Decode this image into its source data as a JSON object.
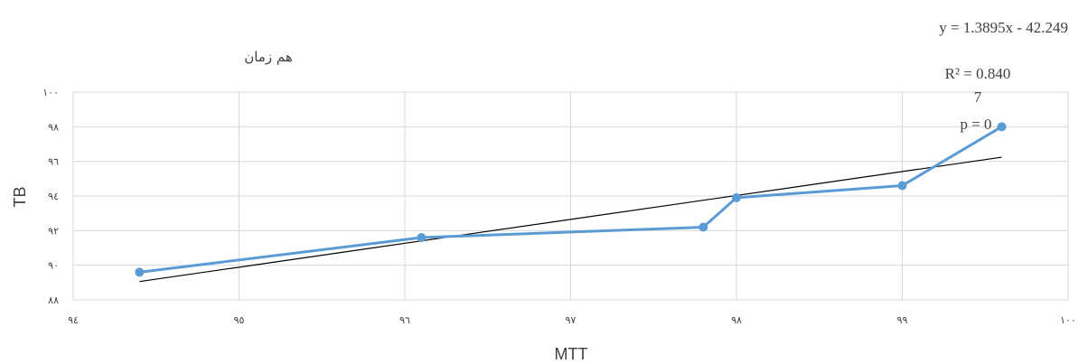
{
  "chart_data": {
    "type": "scatter",
    "title": "هم زمان",
    "xlabel": "MTT",
    "ylabel": "TB",
    "xlim": [
      94,
      100
    ],
    "ylim": [
      88,
      100
    ],
    "xticks": [
      94,
      95,
      96,
      97,
      98,
      99,
      100
    ],
    "yticks": [
      88,
      90,
      92,
      94,
      96,
      98,
      100
    ],
    "xtick_labels": [
      "۹٤",
      "۹٥",
      "۹٦",
      "۹۷",
      "۹۸",
      "۹۹",
      "۱۰۰"
    ],
    "ytick_labels": [
      "۸۸",
      "۹۰",
      "۹۲",
      "۹٤",
      "۹٦",
      "۹۸",
      "۱۰۰"
    ],
    "grid": true,
    "series": [
      {
        "x": [
          94.4,
          96.1,
          97.8,
          98.0,
          99.0,
          99.6
        ],
        "y": [
          89.6,
          91.6,
          92.2,
          93.9,
          94.6,
          98.0
        ],
        "color": "#5b9bd5",
        "style": "line+markers"
      }
    ],
    "trendline": {
      "type": "linear",
      "x_range": [
        94.4,
        99.6
      ],
      "color": "#000000"
    },
    "annotations": [
      "y = 1.3895x - 42.249",
      "R² = 0.840",
      "7",
      "p = 0"
    ]
  }
}
